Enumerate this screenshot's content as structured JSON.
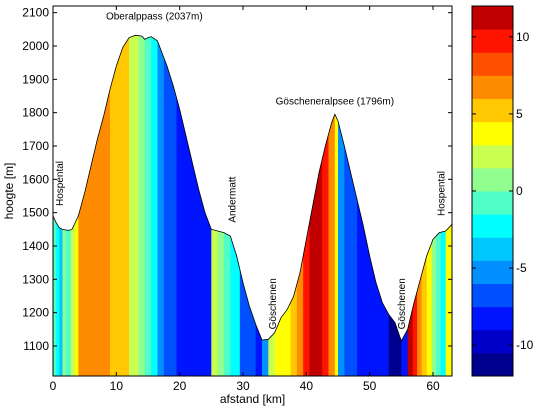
{
  "chart_data": {
    "type": "area",
    "xlabel": "afstand [km]",
    "ylabel": "hoogte [m]",
    "xlim": [
      0,
      63
    ],
    "ylim": [
      1010,
      2120
    ],
    "x_ticks": [
      0,
      10,
      20,
      30,
      40,
      50,
      60
    ],
    "y_ticks": [
      1100,
      1200,
      1300,
      1400,
      1500,
      1600,
      1700,
      1800,
      1900,
      2000,
      2100
    ],
    "profile": {
      "x": [
        0,
        0.5,
        1,
        1.5,
        2,
        2.5,
        3,
        4,
        5,
        6,
        7,
        8,
        9,
        10,
        11,
        12,
        13,
        14,
        14.5,
        15,
        15.5,
        16,
        16.5,
        17,
        18,
        19,
        20,
        21,
        22,
        23,
        24,
        25,
        26,
        27,
        28,
        29,
        30,
        31,
        32,
        33,
        34,
        35,
        36,
        37,
        38,
        39,
        40,
        41,
        42,
        43,
        44,
        44.5,
        45,
        46,
        47,
        48,
        49,
        50,
        51,
        52,
        53,
        54,
        55,
        56,
        57,
        58,
        59,
        60,
        61,
        62,
        63
      ],
      "y": [
        1490,
        1470,
        1455,
        1450,
        1448,
        1447,
        1450,
        1490,
        1560,
        1640,
        1720,
        1790,
        1870,
        1940,
        1995,
        2025,
        2032,
        2030,
        2020,
        2025,
        2028,
        2022,
        2015,
        1990,
        1940,
        1880,
        1810,
        1730,
        1650,
        1570,
        1500,
        1450,
        1445,
        1440,
        1430,
        1370,
        1290,
        1220,
        1165,
        1118,
        1120,
        1140,
        1185,
        1210,
        1250,
        1320,
        1420,
        1520,
        1620,
        1700,
        1770,
        1795,
        1775,
        1700,
        1620,
        1540,
        1460,
        1370,
        1290,
        1230,
        1195,
        1170,
        1115,
        1150,
        1230,
        1300,
        1370,
        1420,
        1440,
        1445,
        1465
      ]
    },
    "temperature_bands": {
      "edges": [
        0,
        0.5,
        1,
        1.5,
        2,
        2.8,
        3.5,
        4,
        9,
        12,
        13.5,
        14.5,
        15.5,
        16.5,
        17.5,
        19.5,
        25,
        26,
        27,
        28,
        29.5,
        31,
        32,
        33,
        34,
        35,
        36.5,
        37.5,
        38.5,
        39.5,
        40.5,
        41.5,
        42.5,
        43.5,
        44.5,
        45,
        46,
        47,
        48,
        49,
        50,
        51,
        52,
        53,
        54,
        55,
        56,
        56.8,
        57.5,
        58.2,
        59,
        59.8,
        60.5,
        61.2,
        62,
        63
      ],
      "values": [
        -1,
        -3,
        -4,
        0,
        -1,
        2,
        4,
        7,
        5,
        2,
        1,
        -1,
        -3,
        -5,
        -7,
        -9,
        2,
        0,
        -1,
        -3,
        -7,
        -7,
        -9,
        -5,
        2,
        3,
        4,
        5,
        7,
        9,
        11,
        12,
        10,
        6,
        4,
        -5,
        -7,
        -7,
        -9,
        -9,
        -9,
        -9,
        -9,
        -11,
        -12,
        -9,
        11,
        9,
        7,
        5,
        3,
        1,
        -1,
        -3,
        4
      ]
    },
    "annotations": [
      {
        "text": "Oberalppass (2037m)",
        "x": 16,
        "y": 2080,
        "orientation": "horizontal"
      },
      {
        "text": "Göscheneralpsee (1796m)",
        "x": 44.5,
        "y": 1825,
        "orientation": "horizontal"
      },
      {
        "text": "Hospental",
        "x": 1.6,
        "y": 1520,
        "orientation": "vertical"
      },
      {
        "text": "Andermatt",
        "x": 28.8,
        "y": 1470,
        "orientation": "vertical"
      },
      {
        "text": "Göschenen",
        "x": 35.2,
        "y": 1150,
        "orientation": "vertical"
      },
      {
        "text": "Göschenen",
        "x": 55.6,
        "y": 1150,
        "orientation": "vertical"
      },
      {
        "text": "Hospental",
        "x": 61.8,
        "y": 1490,
        "orientation": "vertical"
      }
    ],
    "colorbar": {
      "min": -12,
      "max": 12,
      "levels": 16,
      "colors": [
        "#00008f",
        "#0000c8",
        "#0014ff",
        "#0050ff",
        "#0090ff",
        "#00c8ff",
        "#00ffff",
        "#50ffc8",
        "#90ff90",
        "#c8ff50",
        "#ffff00",
        "#ffc800",
        "#ff8c00",
        "#ff5000",
        "#ff1400",
        "#c00000"
      ],
      "ticks": [
        10,
        5,
        0,
        -5,
        -10
      ],
      "tick_labels": [
        "10",
        "5",
        "0",
        "-5",
        "-10"
      ]
    },
    "grid": false
  }
}
